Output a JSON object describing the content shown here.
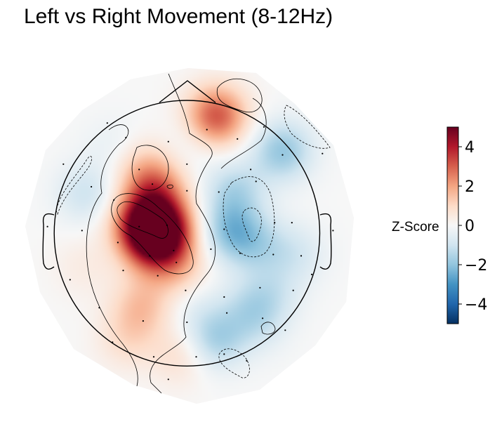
{
  "chart_data": {
    "type": "heatmap",
    "title": "Left vs Right Movement (8-12Hz)",
    "colorbar": {
      "label": "Z-Score",
      "range": [
        -5,
        5
      ],
      "ticks": [
        {
          "value": 4,
          "label": "4"
        },
        {
          "value": 2,
          "label": "2"
        },
        {
          "value": 0,
          "label": "0"
        },
        {
          "value": -2,
          "label": "−2"
        },
        {
          "value": -4,
          "label": "−4"
        }
      ],
      "colormap": "RdBu_r",
      "colors": [
        "#053061",
        "#2166ac",
        "#4393c3",
        "#92c5de",
        "#d1e5f0",
        "#f7f7f7",
        "#fddbc7",
        "#f4a582",
        "#d6604d",
        "#b2182b",
        "#67001f"
      ]
    },
    "topomap_sources": [
      {
        "x": -0.32,
        "y": 0.06,
        "z": 4.4
      },
      {
        "x": -0.15,
        "y": 0.02,
        "z": 3.2
      },
      {
        "x": -0.24,
        "y": -0.12,
        "z": 2.3
      },
      {
        "x": -0.23,
        "y": 0.3,
        "z": 2.3
      },
      {
        "x": -0.32,
        "y": 0.48,
        "z": 1.2
      },
      {
        "x": 0.22,
        "y": 0.88,
        "z": 3.2
      },
      {
        "x": -0.34,
        "y": -0.55,
        "z": 1.4
      },
      {
        "x": -0.05,
        "y": -0.28,
        "z": 1.0
      },
      {
        "x": -0.78,
        "y": -0.25,
        "z": 0.4
      },
      {
        "x": -0.45,
        "y": -0.8,
        "z": 0.8
      },
      {
        "x": -0.05,
        "y": -0.92,
        "z": 0.8
      },
      {
        "x": 0.32,
        "y": 0.02,
        "z": -1.8
      },
      {
        "x": 0.36,
        "y": 0.32,
        "z": -1.4
      },
      {
        "x": 0.52,
        "y": -0.08,
        "z": -1.2
      },
      {
        "x": 0.72,
        "y": 0.62,
        "z": -1.9
      },
      {
        "x": -0.76,
        "y": 0.3,
        "z": -1.0
      },
      {
        "x": 0.22,
        "y": -0.8,
        "z": -1.6
      },
      {
        "x": 0.48,
        "y": -0.56,
        "z": -1.0
      },
      {
        "x": 0.82,
        "y": -0.15,
        "z": -0.8
      },
      {
        "x": 0.06,
        "y": -0.55,
        "z": -0.5
      },
      {
        "x": -0.55,
        "y": 0.65,
        "z": -0.4
      },
      {
        "x": 0.05,
        "y": 0.7,
        "z": -0.4
      },
      {
        "x": 0.65,
        "y": -0.44,
        "z": -0.7
      },
      {
        "x": 0.55,
        "y": -0.7,
        "z": -0.5
      }
    ],
    "sensors": [
      [
        -0.93,
        0.52
      ],
      [
        -0.6,
        0.83
      ],
      [
        -0.46,
        0.72
      ],
      [
        -0.36,
        0.48
      ],
      [
        -0.14,
        0.69
      ],
      [
        0.0,
        0.52
      ],
      [
        0.15,
        0.78
      ],
      [
        0.38,
        0.71
      ],
      [
        0.58,
        0.8
      ],
      [
        0.48,
        0.48
      ],
      [
        0.72,
        0.59
      ],
      [
        1.02,
        0.6
      ],
      [
        -0.72,
        0.35
      ],
      [
        -0.55,
        0.25
      ],
      [
        -0.26,
        0.37
      ],
      [
        -0.15,
        0.06
      ],
      [
        0.0,
        0.32
      ],
      [
        0.24,
        0.31
      ],
      [
        0.52,
        0.39
      ],
      [
        0.28,
        0.03
      ],
      [
        0.66,
        0.08
      ],
      [
        0.79,
        0.08
      ],
      [
        -1.05,
        0.05
      ],
      [
        -0.79,
        0.02
      ],
      [
        -0.52,
        -0.07
      ],
      [
        -0.28,
        -0.17
      ],
      [
        -0.36,
        0.05
      ],
      [
        -0.08,
        -0.22
      ],
      [
        -0.1,
        -0.13
      ],
      [
        0.18,
        -0.12
      ],
      [
        0.4,
        -0.15
      ],
      [
        0.65,
        -0.16
      ],
      [
        0.86,
        -0.17
      ],
      [
        -0.48,
        -0.28
      ],
      [
        -0.22,
        -0.32
      ],
      [
        -0.01,
        -0.43
      ],
      [
        0.28,
        -0.48
      ],
      [
        0.55,
        -0.41
      ],
      [
        0.8,
        -0.43
      ],
      [
        -0.88,
        -0.35
      ],
      [
        -0.66,
        -0.56
      ],
      [
        -0.33,
        -0.66
      ],
      [
        0.0,
        -0.67
      ],
      [
        0.3,
        -0.6
      ],
      [
        0.57,
        -0.64
      ],
      [
        0.74,
        -0.73
      ],
      [
        0.94,
        -0.31
      ],
      [
        -0.56,
        -0.82
      ],
      [
        -0.25,
        -0.93
      ],
      [
        0.07,
        -0.93
      ],
      [
        0.28,
        -0.91
      ],
      [
        0.45,
        -0.96
      ],
      [
        -0.14,
        -1.1
      ],
      [
        1.1,
        0.02
      ]
    ]
  }
}
